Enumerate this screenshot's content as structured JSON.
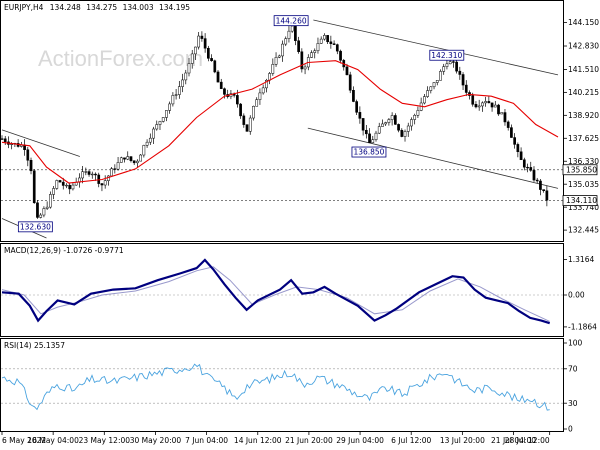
{
  "chart_data": {
    "type": "candlestick",
    "title": "EURJPY,H4",
    "ohlc": {
      "open": "134.248",
      "high": "134.275",
      "low": "134.003",
      "close": "134.195"
    },
    "watermark": "ActionForex.com",
    "price": {
      "ylim": [
        132.0,
        145.2
      ],
      "ticks": [
        "144.150",
        "142.830",
        "141.510",
        "140.215",
        "138.920",
        "137.625",
        "136.330",
        "135.035",
        "133.740",
        "132.445"
      ],
      "tick_values": [
        144.15,
        142.83,
        141.51,
        140.215,
        138.92,
        137.625,
        136.33,
        135.035,
        133.74,
        132.445
      ],
      "current_price_tag": "135.850",
      "current_price_value": 135.85,
      "last_price_tag": "134.110",
      "last_price_value": 134.11,
      "annotations": [
        {
          "label": "144.260",
          "t": 0.52,
          "value": 144.26
        },
        {
          "label": "142.310",
          "t": 0.8,
          "value": 142.31
        },
        {
          "label": "136.850",
          "t": 0.66,
          "value": 136.85
        },
        {
          "label": "132.630",
          "t": 0.06,
          "value": 132.63
        }
      ],
      "keypoints": [
        [
          0.0,
          137.6
        ],
        [
          0.02,
          137.3
        ],
        [
          0.04,
          137.2
        ],
        [
          0.055,
          135.6
        ],
        [
          0.06,
          132.8
        ],
        [
          0.08,
          133.8
        ],
        [
          0.1,
          135.3
        ],
        [
          0.12,
          134.7
        ],
        [
          0.14,
          135.5
        ],
        [
          0.16,
          135.8
        ],
        [
          0.18,
          135.0
        ],
        [
          0.2,
          135.9
        ],
        [
          0.22,
          136.6
        ],
        [
          0.24,
          136.2
        ],
        [
          0.26,
          137.5
        ],
        [
          0.28,
          138.4
        ],
        [
          0.3,
          139.5
        ],
        [
          0.32,
          140.6
        ],
        [
          0.34,
          142.0
        ],
        [
          0.355,
          143.5
        ],
        [
          0.375,
          142.0
        ],
        [
          0.395,
          140.2
        ],
        [
          0.42,
          139.9
        ],
        [
          0.44,
          138.0
        ],
        [
          0.46,
          140.1
        ],
        [
          0.48,
          141.2
        ],
        [
          0.5,
          142.5
        ],
        [
          0.52,
          144.1
        ],
        [
          0.54,
          141.5
        ],
        [
          0.56,
          142.6
        ],
        [
          0.58,
          143.3
        ],
        [
          0.6,
          142.8
        ],
        [
          0.62,
          141.2
        ],
        [
          0.64,
          139.0
        ],
        [
          0.66,
          137.3
        ],
        [
          0.68,
          138.2
        ],
        [
          0.7,
          139.0
        ],
        [
          0.72,
          137.8
        ],
        [
          0.74,
          138.8
        ],
        [
          0.76,
          140.0
        ],
        [
          0.78,
          140.8
        ],
        [
          0.8,
          142.0
        ],
        [
          0.815,
          141.7
        ],
        [
          0.83,
          140.6
        ],
        [
          0.85,
          139.5
        ],
        [
          0.87,
          139.8
        ],
        [
          0.89,
          139.3
        ],
        [
          0.91,
          138.4
        ],
        [
          0.93,
          136.5
        ],
        [
          0.95,
          135.7
        ],
        [
          0.965,
          135.0
        ],
        [
          0.98,
          134.2
        ]
      ],
      "sma": [
        [
          0.0,
          137.4
        ],
        [
          0.05,
          137.2
        ],
        [
          0.08,
          136.0
        ],
        [
          0.12,
          135.1
        ],
        [
          0.18,
          135.3
        ],
        [
          0.24,
          135.9
        ],
        [
          0.3,
          137.2
        ],
        [
          0.35,
          138.8
        ],
        [
          0.4,
          140.0
        ],
        [
          0.45,
          140.4
        ],
        [
          0.5,
          141.2
        ],
        [
          0.55,
          141.9
        ],
        [
          0.6,
          142.0
        ],
        [
          0.64,
          141.5
        ],
        [
          0.68,
          140.4
        ],
        [
          0.72,
          139.6
        ],
        [
          0.76,
          139.4
        ],
        [
          0.8,
          139.8
        ],
        [
          0.84,
          140.1
        ],
        [
          0.88,
          140.0
        ],
        [
          0.92,
          139.6
        ],
        [
          0.96,
          138.4
        ],
        [
          1.0,
          137.7
        ]
      ],
      "channels": [
        {
          "from": [
            0.0,
            138.1
          ],
          "to": [
            0.14,
            136.6
          ]
        },
        {
          "from": [
            0.0,
            133.1
          ],
          "to": [
            0.08,
            132.0
          ]
        },
        {
          "from": [
            0.56,
            144.3
          ],
          "to": [
            1.0,
            141.2
          ]
        },
        {
          "from": [
            0.55,
            138.2
          ],
          "to": [
            1.0,
            134.8
          ]
        }
      ]
    },
    "macd": {
      "title": "MACD(12,26,9) -1.0726 -0.9771",
      "ylim": [
        -1.45,
        1.45
      ],
      "ticks": [
        "1.3164",
        "0.00",
        "-1.1864"
      ],
      "tick_values": [
        1.3164,
        0.0,
        -1.1864
      ],
      "main": [
        [
          0.0,
          0.1
        ],
        [
          0.03,
          0.05
        ],
        [
          0.05,
          -0.4
        ],
        [
          0.065,
          -0.95
        ],
        [
          0.08,
          -0.6
        ],
        [
          0.1,
          -0.2
        ],
        [
          0.13,
          -0.35
        ],
        [
          0.16,
          0.05
        ],
        [
          0.2,
          0.2
        ],
        [
          0.24,
          0.25
        ],
        [
          0.28,
          0.55
        ],
        [
          0.32,
          0.8
        ],
        [
          0.35,
          1.0
        ],
        [
          0.365,
          1.3
        ],
        [
          0.38,
          0.95
        ],
        [
          0.4,
          0.4
        ],
        [
          0.42,
          -0.1
        ],
        [
          0.44,
          -0.55
        ],
        [
          0.46,
          -0.2
        ],
        [
          0.5,
          0.2
        ],
        [
          0.52,
          0.55
        ],
        [
          0.54,
          0.05
        ],
        [
          0.56,
          0.1
        ],
        [
          0.58,
          0.3
        ],
        [
          0.6,
          0.05
        ],
        [
          0.64,
          -0.4
        ],
        [
          0.67,
          -0.95
        ],
        [
          0.69,
          -0.75
        ],
        [
          0.71,
          -0.5
        ],
        [
          0.73,
          -0.2
        ],
        [
          0.75,
          0.1
        ],
        [
          0.78,
          0.4
        ],
        [
          0.81,
          0.7
        ],
        [
          0.83,
          0.65
        ],
        [
          0.85,
          0.2
        ],
        [
          0.87,
          -0.1
        ],
        [
          0.89,
          -0.2
        ],
        [
          0.91,
          -0.3
        ],
        [
          0.93,
          -0.6
        ],
        [
          0.95,
          -0.85
        ],
        [
          0.97,
          -0.95
        ],
        [
          0.985,
          -1.05
        ]
      ],
      "signal": [
        [
          0.0,
          0.2
        ],
        [
          0.04,
          0.0
        ],
        [
          0.07,
          -0.7
        ],
        [
          0.1,
          -0.45
        ],
        [
          0.14,
          -0.25
        ],
        [
          0.18,
          0.0
        ],
        [
          0.24,
          0.15
        ],
        [
          0.3,
          0.5
        ],
        [
          0.35,
          0.9
        ],
        [
          0.38,
          1.05
        ],
        [
          0.41,
          0.55
        ],
        [
          0.45,
          -0.35
        ],
        [
          0.49,
          0.0
        ],
        [
          0.53,
          0.3
        ],
        [
          0.57,
          0.2
        ],
        [
          0.62,
          -0.1
        ],
        [
          0.67,
          -0.7
        ],
        [
          0.72,
          -0.55
        ],
        [
          0.77,
          0.15
        ],
        [
          0.82,
          0.6
        ],
        [
          0.86,
          0.3
        ],
        [
          0.9,
          -0.15
        ],
        [
          0.94,
          -0.55
        ],
        [
          0.985,
          -0.98
        ]
      ]
    },
    "rsi": {
      "title": "RSI(14) 25.1357",
      "ylim": [
        0,
        100
      ],
      "ticks": [
        "100",
        "70",
        "30",
        "0"
      ],
      "tick_values": [
        100,
        70,
        30,
        0
      ],
      "keypoints": [
        [
          0.0,
          60
        ],
        [
          0.03,
          55
        ],
        [
          0.05,
          32
        ],
        [
          0.06,
          22
        ],
        [
          0.08,
          40
        ],
        [
          0.1,
          52
        ],
        [
          0.13,
          45
        ],
        [
          0.16,
          58
        ],
        [
          0.2,
          55
        ],
        [
          0.24,
          60
        ],
        [
          0.28,
          65
        ],
        [
          0.32,
          70
        ],
        [
          0.35,
          75
        ],
        [
          0.37,
          60
        ],
        [
          0.4,
          48
        ],
        [
          0.42,
          35
        ],
        [
          0.44,
          50
        ],
        [
          0.48,
          58
        ],
        [
          0.52,
          66
        ],
        [
          0.54,
          52
        ],
        [
          0.57,
          60
        ],
        [
          0.61,
          50
        ],
        [
          0.64,
          40
        ],
        [
          0.66,
          35
        ],
        [
          0.69,
          48
        ],
        [
          0.72,
          40
        ],
        [
          0.75,
          52
        ],
        [
          0.78,
          62
        ],
        [
          0.8,
          66
        ],
        [
          0.82,
          55
        ],
        [
          0.85,
          45
        ],
        [
          0.88,
          48
        ],
        [
          0.91,
          40
        ],
        [
          0.93,
          33
        ],
        [
          0.95,
          36
        ],
        [
          0.97,
          28
        ],
        [
          0.985,
          25
        ]
      ]
    },
    "x_axis": {
      "ticks": [
        "6 May 2022",
        "16 May 04:00",
        "23 May 12:00",
        "30 May 20:00",
        "7 Jun 04:00",
        "14 Jun 12:00",
        "21 Jun 20:00",
        "29 Jun 04:00",
        "6 Jul 12:00",
        "13 Jul 20:00",
        "21 Jul 04:00",
        "28 Jul 12:00"
      ],
      "tick_positions": [
        0.0,
        0.092,
        0.184,
        0.276,
        0.368,
        0.46,
        0.552,
        0.644,
        0.736,
        0.828,
        0.92,
        0.985
      ]
    },
    "colors": {
      "candle": "#000000",
      "sma": "#e60000",
      "channel": "#333333",
      "macd_main": "#00007f",
      "macd_signal": "#9999cc",
      "rsi": "#4aa3df",
      "dotted": "#555555",
      "tag_border": "#00007f"
    }
  }
}
